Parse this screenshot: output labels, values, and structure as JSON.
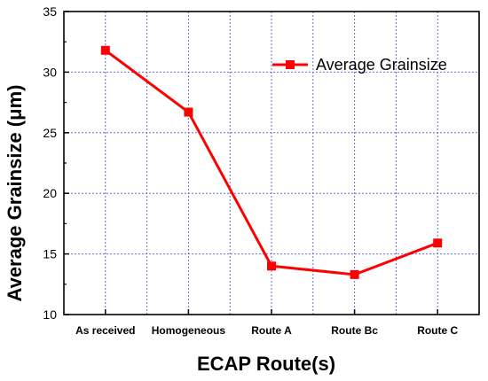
{
  "chart_data": {
    "type": "line",
    "categories": [
      "As received",
      "Homogeneous",
      "Route A",
      "Route Bc",
      "Route C"
    ],
    "series": [
      {
        "name": "Average Grainsize",
        "values": [
          31.8,
          26.7,
          14.0,
          13.3,
          15.9
        ],
        "color": "#ff0000",
        "marker": "square"
      }
    ],
    "xlabel": "ECAP Route(s)",
    "ylabel": "Average Grainsize (μm)",
    "ylim": [
      10,
      35
    ],
    "yticks": [
      10,
      15,
      20,
      25,
      30,
      35
    ],
    "grid": true,
    "grid_color": "#6b6bd6",
    "legend_position": "top-right"
  }
}
